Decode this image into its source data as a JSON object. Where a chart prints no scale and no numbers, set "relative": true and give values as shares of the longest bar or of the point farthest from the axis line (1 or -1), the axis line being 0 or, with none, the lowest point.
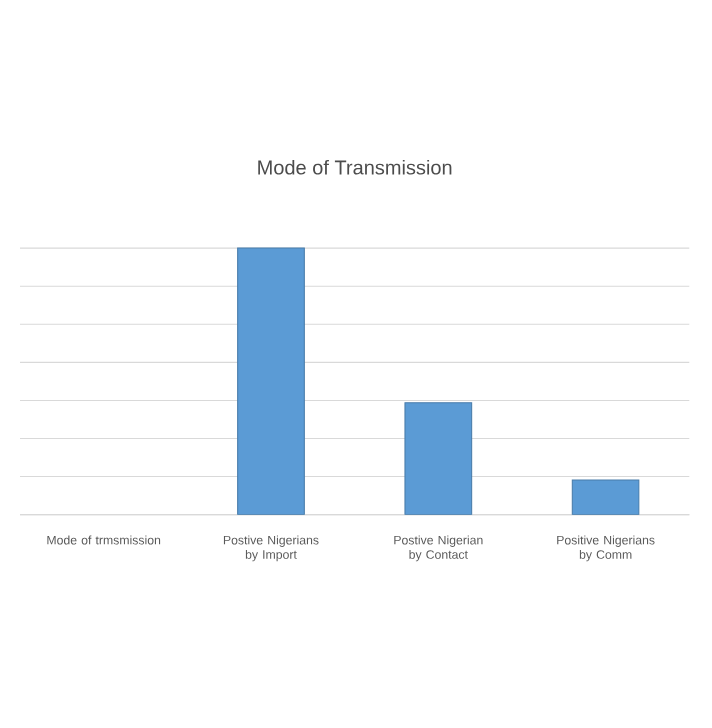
{
  "chart_data": {
    "type": "bar",
    "title": "Mode of Transmission",
    "categories": [
      "Mode of trmsmission",
      "Postive Nigerians by Import",
      "Postive Nigerian by Contact",
      "Positive Nigerians by Comm"
    ],
    "values": [
      null,
      1,
      0.42,
      0.13
    ],
    "color": "#5b9bd5",
    "relative": true,
    "grid": "y"
  }
}
